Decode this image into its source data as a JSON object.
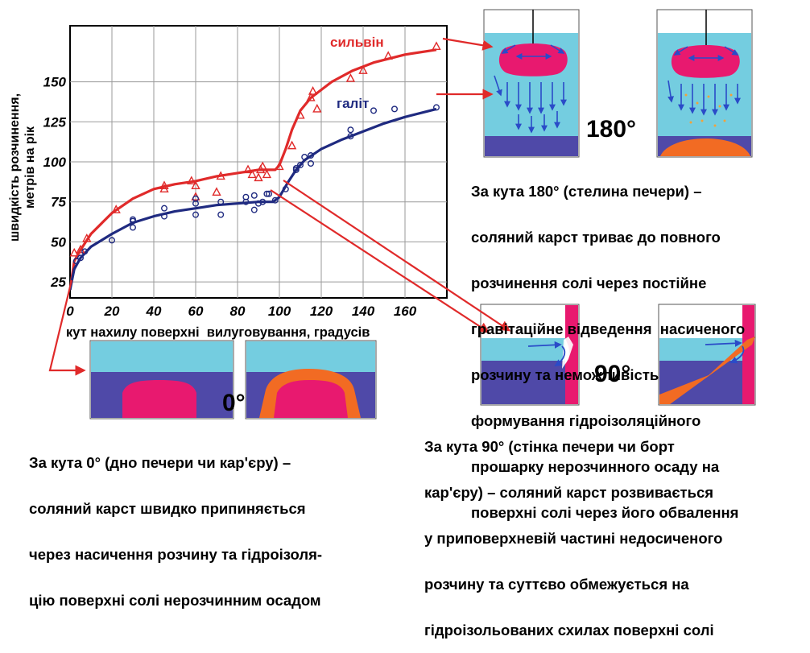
{
  "chart_data": {
    "type": "scatter",
    "xlabel": "кут нахилу поверхні  вилуговування, градусів",
    "ylabel_line1": "швидкість розчинення,",
    "ylabel_line2": "метрів на рік",
    "xlim": [
      0,
      180
    ],
    "ylim": [
      15,
      185
    ],
    "x_ticks": [
      "0",
      "20",
      "40",
      "60",
      "80",
      "100",
      "120",
      "140",
      "160"
    ],
    "y_ticks": [
      "25",
      "50",
      "75",
      "100",
      "125",
      "150"
    ],
    "series": [
      {
        "name": "сильвін",
        "color": "#e02a2a",
        "marker": "triangle",
        "curve": [
          [
            0,
            20
          ],
          [
            2,
            38
          ],
          [
            5,
            45
          ],
          [
            10,
            55
          ],
          [
            20,
            68
          ],
          [
            30,
            77
          ],
          [
            40,
            83
          ],
          [
            50,
            86
          ],
          [
            60,
            88
          ],
          [
            70,
            91
          ],
          [
            80,
            93
          ],
          [
            90,
            95
          ],
          [
            98,
            95
          ],
          [
            100,
            98
          ],
          [
            103,
            108
          ],
          [
            106,
            120
          ],
          [
            110,
            132
          ],
          [
            115,
            140
          ],
          [
            125,
            150
          ],
          [
            135,
            157
          ],
          [
            145,
            162
          ],
          [
            160,
            167
          ],
          [
            175,
            170
          ]
        ],
        "points": [
          [
            2,
            43
          ],
          [
            5,
            45
          ],
          [
            8,
            52
          ],
          [
            22,
            70
          ],
          [
            45,
            83
          ],
          [
            45,
            85
          ],
          [
            58,
            88
          ],
          [
            60,
            78
          ],
          [
            60,
            85
          ],
          [
            70,
            81
          ],
          [
            72,
            91
          ],
          [
            85,
            95
          ],
          [
            87,
            92
          ],
          [
            90,
            90
          ],
          [
            91,
            95
          ],
          [
            92,
            97
          ],
          [
            94,
            92
          ],
          [
            100,
            97
          ],
          [
            106,
            110
          ],
          [
            110,
            129
          ],
          [
            115,
            140
          ],
          [
            116,
            144
          ],
          [
            118,
            133
          ],
          [
            134,
            152
          ],
          [
            140,
            157
          ],
          [
            152,
            166
          ],
          [
            175,
            172
          ]
        ]
      },
      {
        "name": "галіт",
        "color": "#1f2a80",
        "marker": "circle",
        "curve": [
          [
            0,
            20
          ],
          [
            2,
            33
          ],
          [
            5,
            40
          ],
          [
            10,
            47
          ],
          [
            20,
            55
          ],
          [
            30,
            62
          ],
          [
            40,
            66
          ],
          [
            50,
            69
          ],
          [
            60,
            71
          ],
          [
            70,
            73
          ],
          [
            80,
            74
          ],
          [
            90,
            75
          ],
          [
            97,
            75
          ],
          [
            100,
            78
          ],
          [
            104,
            87
          ],
          [
            108,
            95
          ],
          [
            112,
            101
          ],
          [
            120,
            108
          ],
          [
            130,
            114
          ],
          [
            140,
            119
          ],
          [
            150,
            124
          ],
          [
            160,
            128
          ],
          [
            175,
            133
          ]
        ],
        "points": [
          [
            3,
            38
          ],
          [
            5,
            40
          ],
          [
            7,
            44
          ],
          [
            20,
            51
          ],
          [
            30,
            59
          ],
          [
            30,
            64
          ],
          [
            30,
            63
          ],
          [
            45,
            66
          ],
          [
            45,
            71
          ],
          [
            60,
            67
          ],
          [
            60,
            74
          ],
          [
            60,
            77
          ],
          [
            72,
            67
          ],
          [
            72,
            75
          ],
          [
            84,
            75
          ],
          [
            84,
            78
          ],
          [
            88,
            70
          ],
          [
            88,
            79
          ],
          [
            90,
            74
          ],
          [
            92,
            75
          ],
          [
            94,
            80
          ],
          [
            95,
            80
          ],
          [
            98,
            76
          ],
          [
            103,
            83
          ],
          [
            108,
            95
          ],
          [
            108,
            96
          ],
          [
            110,
            98
          ],
          [
            112,
            103
          ],
          [
            115,
            104
          ],
          [
            115,
            99
          ],
          [
            134,
            116
          ],
          [
            134,
            120
          ],
          [
            145,
            132
          ],
          [
            155,
            133
          ],
          [
            175,
            134
          ]
        ]
      }
    ]
  },
  "panels": {
    "deg180": "180°",
    "deg90": "90°",
    "deg0": "0°"
  },
  "captions": {
    "c180": [
      "За кута 180° (стелина печери) –",
      "соляний карст триває до повного",
      "розчинення солі через постійне",
      "гравітаційне відведення  насиченого",
      "розчину та неможливість",
      "формування гідроізоляційного",
      "прошарку нерозчинного осаду на",
      "поверхні солі через його обвалення"
    ],
    "c90": [
      "За кута 90° (стінка печери чи борт",
      "кар'єру) – соляний карст розвивається",
      "у приповерхневій частині недосиченого",
      "розчину та суттєво обмежується на",
      "гідроізольованих схилах поверхні солі"
    ],
    "c0": [
      "За кута 0° (дно печери чи кар'єру) –",
      "соляний карст швидко припиняється",
      "через насичення розчину та гідроізоля-",
      "цію поверхні солі нерозчинним осадом"
    ]
  },
  "colors": {
    "water": "#74cde0",
    "salt": "#4f49a8",
    "pink": "#e8196f",
    "orange": "#f26b23",
    "arrow_blue": "#2a4bc8",
    "connector_red": "#e02a2a"
  }
}
